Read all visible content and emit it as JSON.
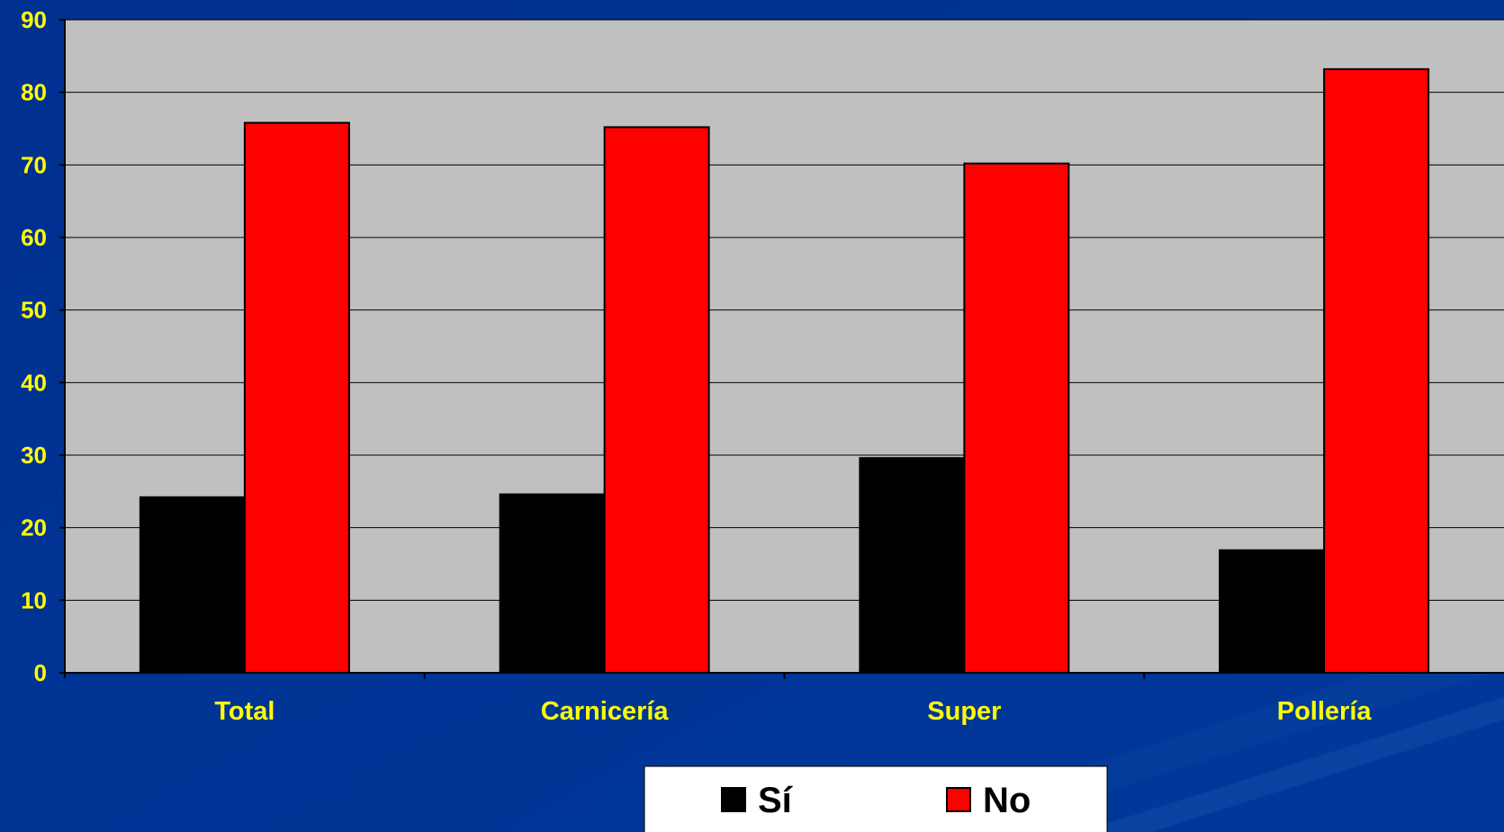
{
  "colors": {
    "background": "#003090",
    "plot_area": "#c0c0c0",
    "grid": "#000000",
    "tick_text": "#ffff00",
    "legend_box": "#ffffff"
  },
  "chart_data": {
    "type": "bar",
    "title": "",
    "xlabel": "",
    "ylabel": "",
    "categories": [
      "Total",
      "Carnicería",
      "Super",
      "Pollería"
    ],
    "series": [
      {
        "name": "Sí",
        "color": "#000000",
        "values": [
          24.2,
          24.6,
          29.6,
          16.9
        ]
      },
      {
        "name": "No",
        "color": "#ff0000",
        "values": [
          75.8,
          75.2,
          70.2,
          83.2
        ]
      }
    ],
    "ylim": [
      0,
      90
    ],
    "yticks": [
      0,
      10,
      20,
      30,
      40,
      50,
      60,
      70,
      80,
      90
    ],
    "grid": true,
    "legend_position": "bottom-center"
  }
}
